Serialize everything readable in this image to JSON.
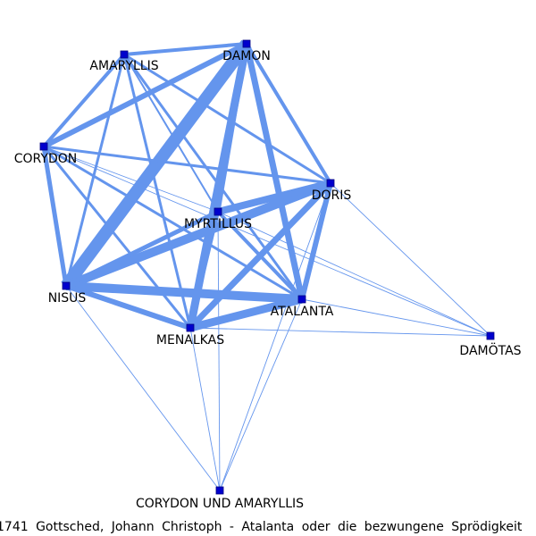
{
  "caption": "1741 Gottsched, Johann Christoph - Atalanta oder die bezwungene Sprödigkeit",
  "colors": {
    "edge": "#6495ed",
    "node_fill": "#0000cd",
    "node_stroke": "#000080",
    "label": "#000000"
  },
  "node_shape": "square",
  "nodes": [
    {
      "id": "AMARYLLIS",
      "label": "AMARYLLIS"
    },
    {
      "id": "DAMON",
      "label": "DAMON"
    },
    {
      "id": "CORYDON",
      "label": "CORYDON"
    },
    {
      "id": "DORIS",
      "label": "DORIS"
    },
    {
      "id": "MYRTILLUS",
      "label": "MYRTILLUS"
    },
    {
      "id": "NISUS",
      "label": "NISUS"
    },
    {
      "id": "ATALANTA",
      "label": "ATALANTA"
    },
    {
      "id": "MENALKAS",
      "label": "MENALKAS"
    },
    {
      "id": "DAMOTAS",
      "label": "DAMÖTAS"
    },
    {
      "id": "CORYDON_UND_AMARYLLIS",
      "label": "CORYDON UND AMARYLLIS"
    }
  ],
  "edges": [
    {
      "source": "AMARYLLIS",
      "target": "DAMON",
      "weight": 4
    },
    {
      "source": "AMARYLLIS",
      "target": "CORYDON",
      "weight": 4
    },
    {
      "source": "AMARYLLIS",
      "target": "NISUS",
      "weight": 3
    },
    {
      "source": "AMARYLLIS",
      "target": "MENALKAS",
      "weight": 3
    },
    {
      "source": "AMARYLLIS",
      "target": "ATALANTA",
      "weight": 3
    },
    {
      "source": "AMARYLLIS",
      "target": "DORIS",
      "weight": 3
    },
    {
      "source": "AMARYLLIS",
      "target": "MYRTILLUS",
      "weight": 2
    },
    {
      "source": "DAMON",
      "target": "CORYDON",
      "weight": 6
    },
    {
      "source": "DAMON",
      "target": "NISUS",
      "weight": 14
    },
    {
      "source": "DAMON",
      "target": "MENALKAS",
      "weight": 9
    },
    {
      "source": "DAMON",
      "target": "ATALANTA",
      "weight": 7
    },
    {
      "source": "DAMON",
      "target": "DORIS",
      "weight": 4
    },
    {
      "source": "DAMON",
      "target": "MYRTILLUS",
      "weight": 5
    },
    {
      "source": "CORYDON",
      "target": "NISUS",
      "weight": 5
    },
    {
      "source": "CORYDON",
      "target": "DORIS",
      "weight": 3
    },
    {
      "source": "CORYDON",
      "target": "ATALANTA",
      "weight": 3
    },
    {
      "source": "CORYDON",
      "target": "MENALKAS",
      "weight": 3
    },
    {
      "source": "CORYDON",
      "target": "MYRTILLUS",
      "weight": 1
    },
    {
      "source": "CORYDON",
      "target": "DAMOTAS",
      "weight": 1
    },
    {
      "source": "DORIS",
      "target": "NISUS",
      "weight": 10
    },
    {
      "source": "DORIS",
      "target": "MYRTILLUS",
      "weight": 8
    },
    {
      "source": "DORIS",
      "target": "ATALANTA",
      "weight": 6
    },
    {
      "source": "DORIS",
      "target": "MENALKAS",
      "weight": 7
    },
    {
      "source": "DORIS",
      "target": "DAMOTAS",
      "weight": 1
    },
    {
      "source": "DORIS",
      "target": "CORYDON_UND_AMARYLLIS",
      "weight": 1
    },
    {
      "source": "MYRTILLUS",
      "target": "NISUS",
      "weight": 5
    },
    {
      "source": "MYRTILLUS",
      "target": "MENALKAS",
      "weight": 4
    },
    {
      "source": "MYRTILLUS",
      "target": "ATALANTA",
      "weight": 4
    },
    {
      "source": "MYRTILLUS",
      "target": "DAMOTAS",
      "weight": 1
    },
    {
      "source": "MYRTILLUS",
      "target": "CORYDON_UND_AMARYLLIS",
      "weight": 1
    },
    {
      "source": "NISUS",
      "target": "ATALANTA",
      "weight": 10
    },
    {
      "source": "NISUS",
      "target": "MENALKAS",
      "weight": 6
    },
    {
      "source": "NISUS",
      "target": "CORYDON_UND_AMARYLLIS",
      "weight": 1
    },
    {
      "source": "ATALANTA",
      "target": "MENALKAS",
      "weight": 9
    },
    {
      "source": "ATALANTA",
      "target": "DAMOTAS",
      "weight": 1
    },
    {
      "source": "ATALANTA",
      "target": "CORYDON_UND_AMARYLLIS",
      "weight": 1
    },
    {
      "source": "MENALKAS",
      "target": "DAMOTAS",
      "weight": 1
    },
    {
      "source": "MENALKAS",
      "target": "CORYDON_UND_AMARYLLIS",
      "weight": 1
    }
  ]
}
